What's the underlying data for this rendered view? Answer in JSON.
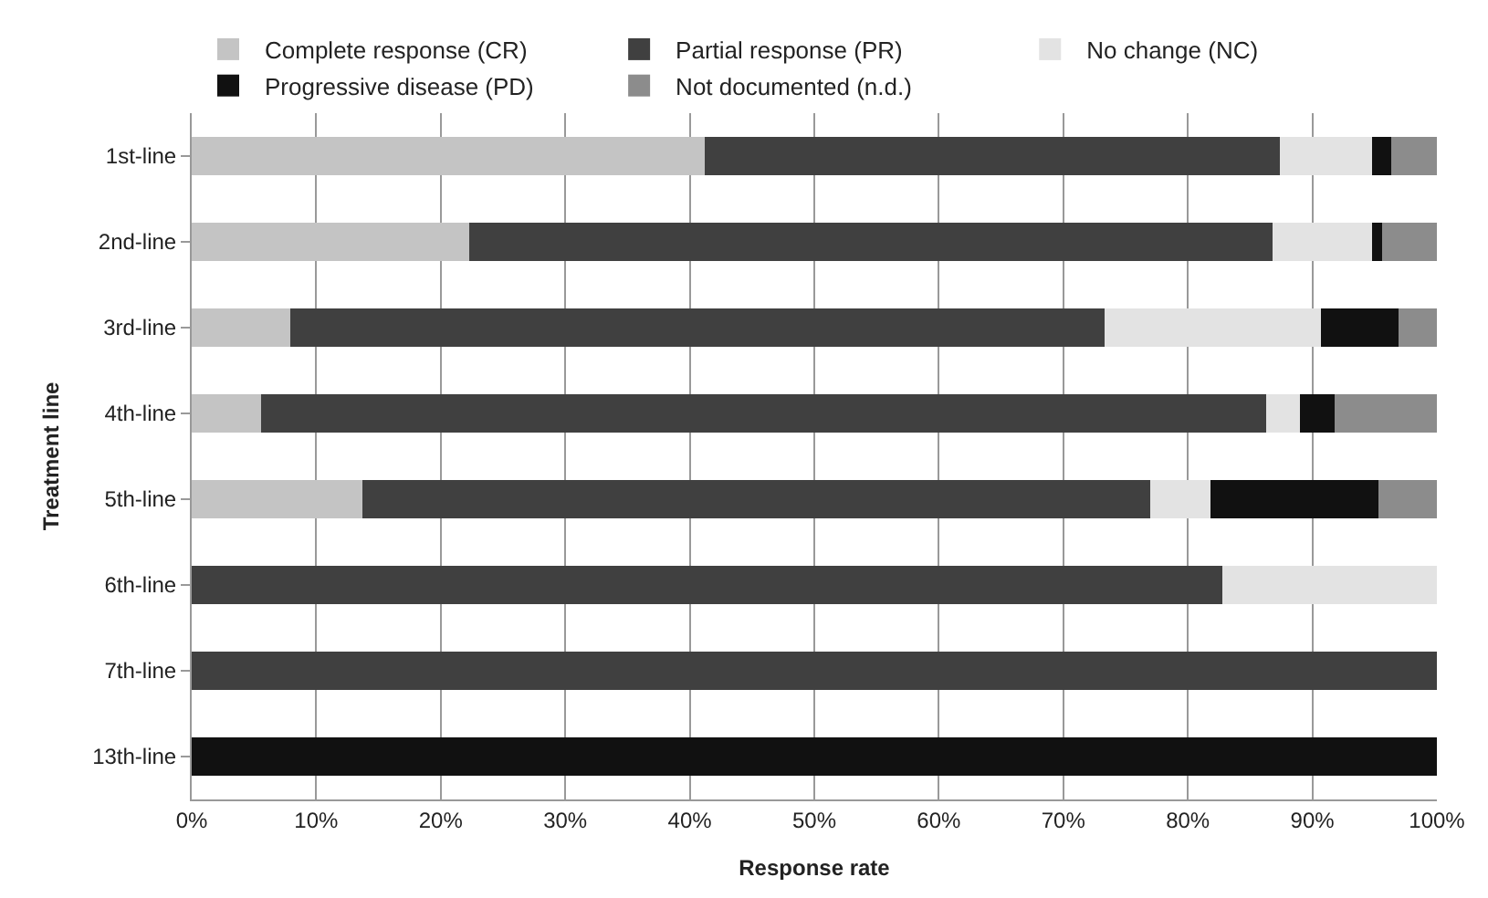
{
  "chart_data": {
    "type": "bar",
    "orientation": "horizontal",
    "stacked": true,
    "xlabel": "Response rate",
    "ylabel": "Treatment line",
    "categories": [
      "1st-line",
      "2nd-line",
      "3rd-line",
      "4th-line",
      "5th-line",
      "6th-line",
      "7th-line",
      "13th-line"
    ],
    "series": [
      {
        "name": "Complete response (CR)",
        "color": "#c4c4c4",
        "values": [
          41.2,
          22.3,
          7.9,
          5.6,
          13.7,
          0,
          0,
          0
        ]
      },
      {
        "name": "Partial response (PR)",
        "color": "#404040",
        "values": [
          46.2,
          64.5,
          65.4,
          80.7,
          63.3,
          82.8,
          100,
          0
        ]
      },
      {
        "name": "No change (NC)",
        "color": "#e3e3e3",
        "values": [
          7.4,
          8.0,
          17.4,
          2.7,
          4.8,
          17.2,
          0,
          0
        ]
      },
      {
        "name": "Progressive disease (PD)",
        "color": "#111111",
        "values": [
          1.5,
          0.8,
          6.2,
          2.8,
          13.5,
          0,
          0,
          100
        ]
      },
      {
        "name": "Not documented (n.d.)",
        "color": "#8c8c8c",
        "values": [
          3.7,
          4.4,
          3.1,
          8.2,
          4.7,
          0,
          0,
          0
        ]
      }
    ],
    "xlim": [
      0,
      100
    ],
    "xticks": [
      {
        "value": 0,
        "label": "0%"
      },
      {
        "value": 10,
        "label": "10%"
      },
      {
        "value": 20,
        "label": "20%"
      },
      {
        "value": 30,
        "label": "30%"
      },
      {
        "value": 40,
        "label": "40%"
      },
      {
        "value": 50,
        "label": "50%"
      },
      {
        "value": 60,
        "label": "60%"
      },
      {
        "value": 70,
        "label": "70%"
      },
      {
        "value": 80,
        "label": "80%"
      },
      {
        "value": 90,
        "label": "90%"
      },
      {
        "value": 100,
        "label": "100%"
      }
    ],
    "grid": "x",
    "legend": "top"
  }
}
